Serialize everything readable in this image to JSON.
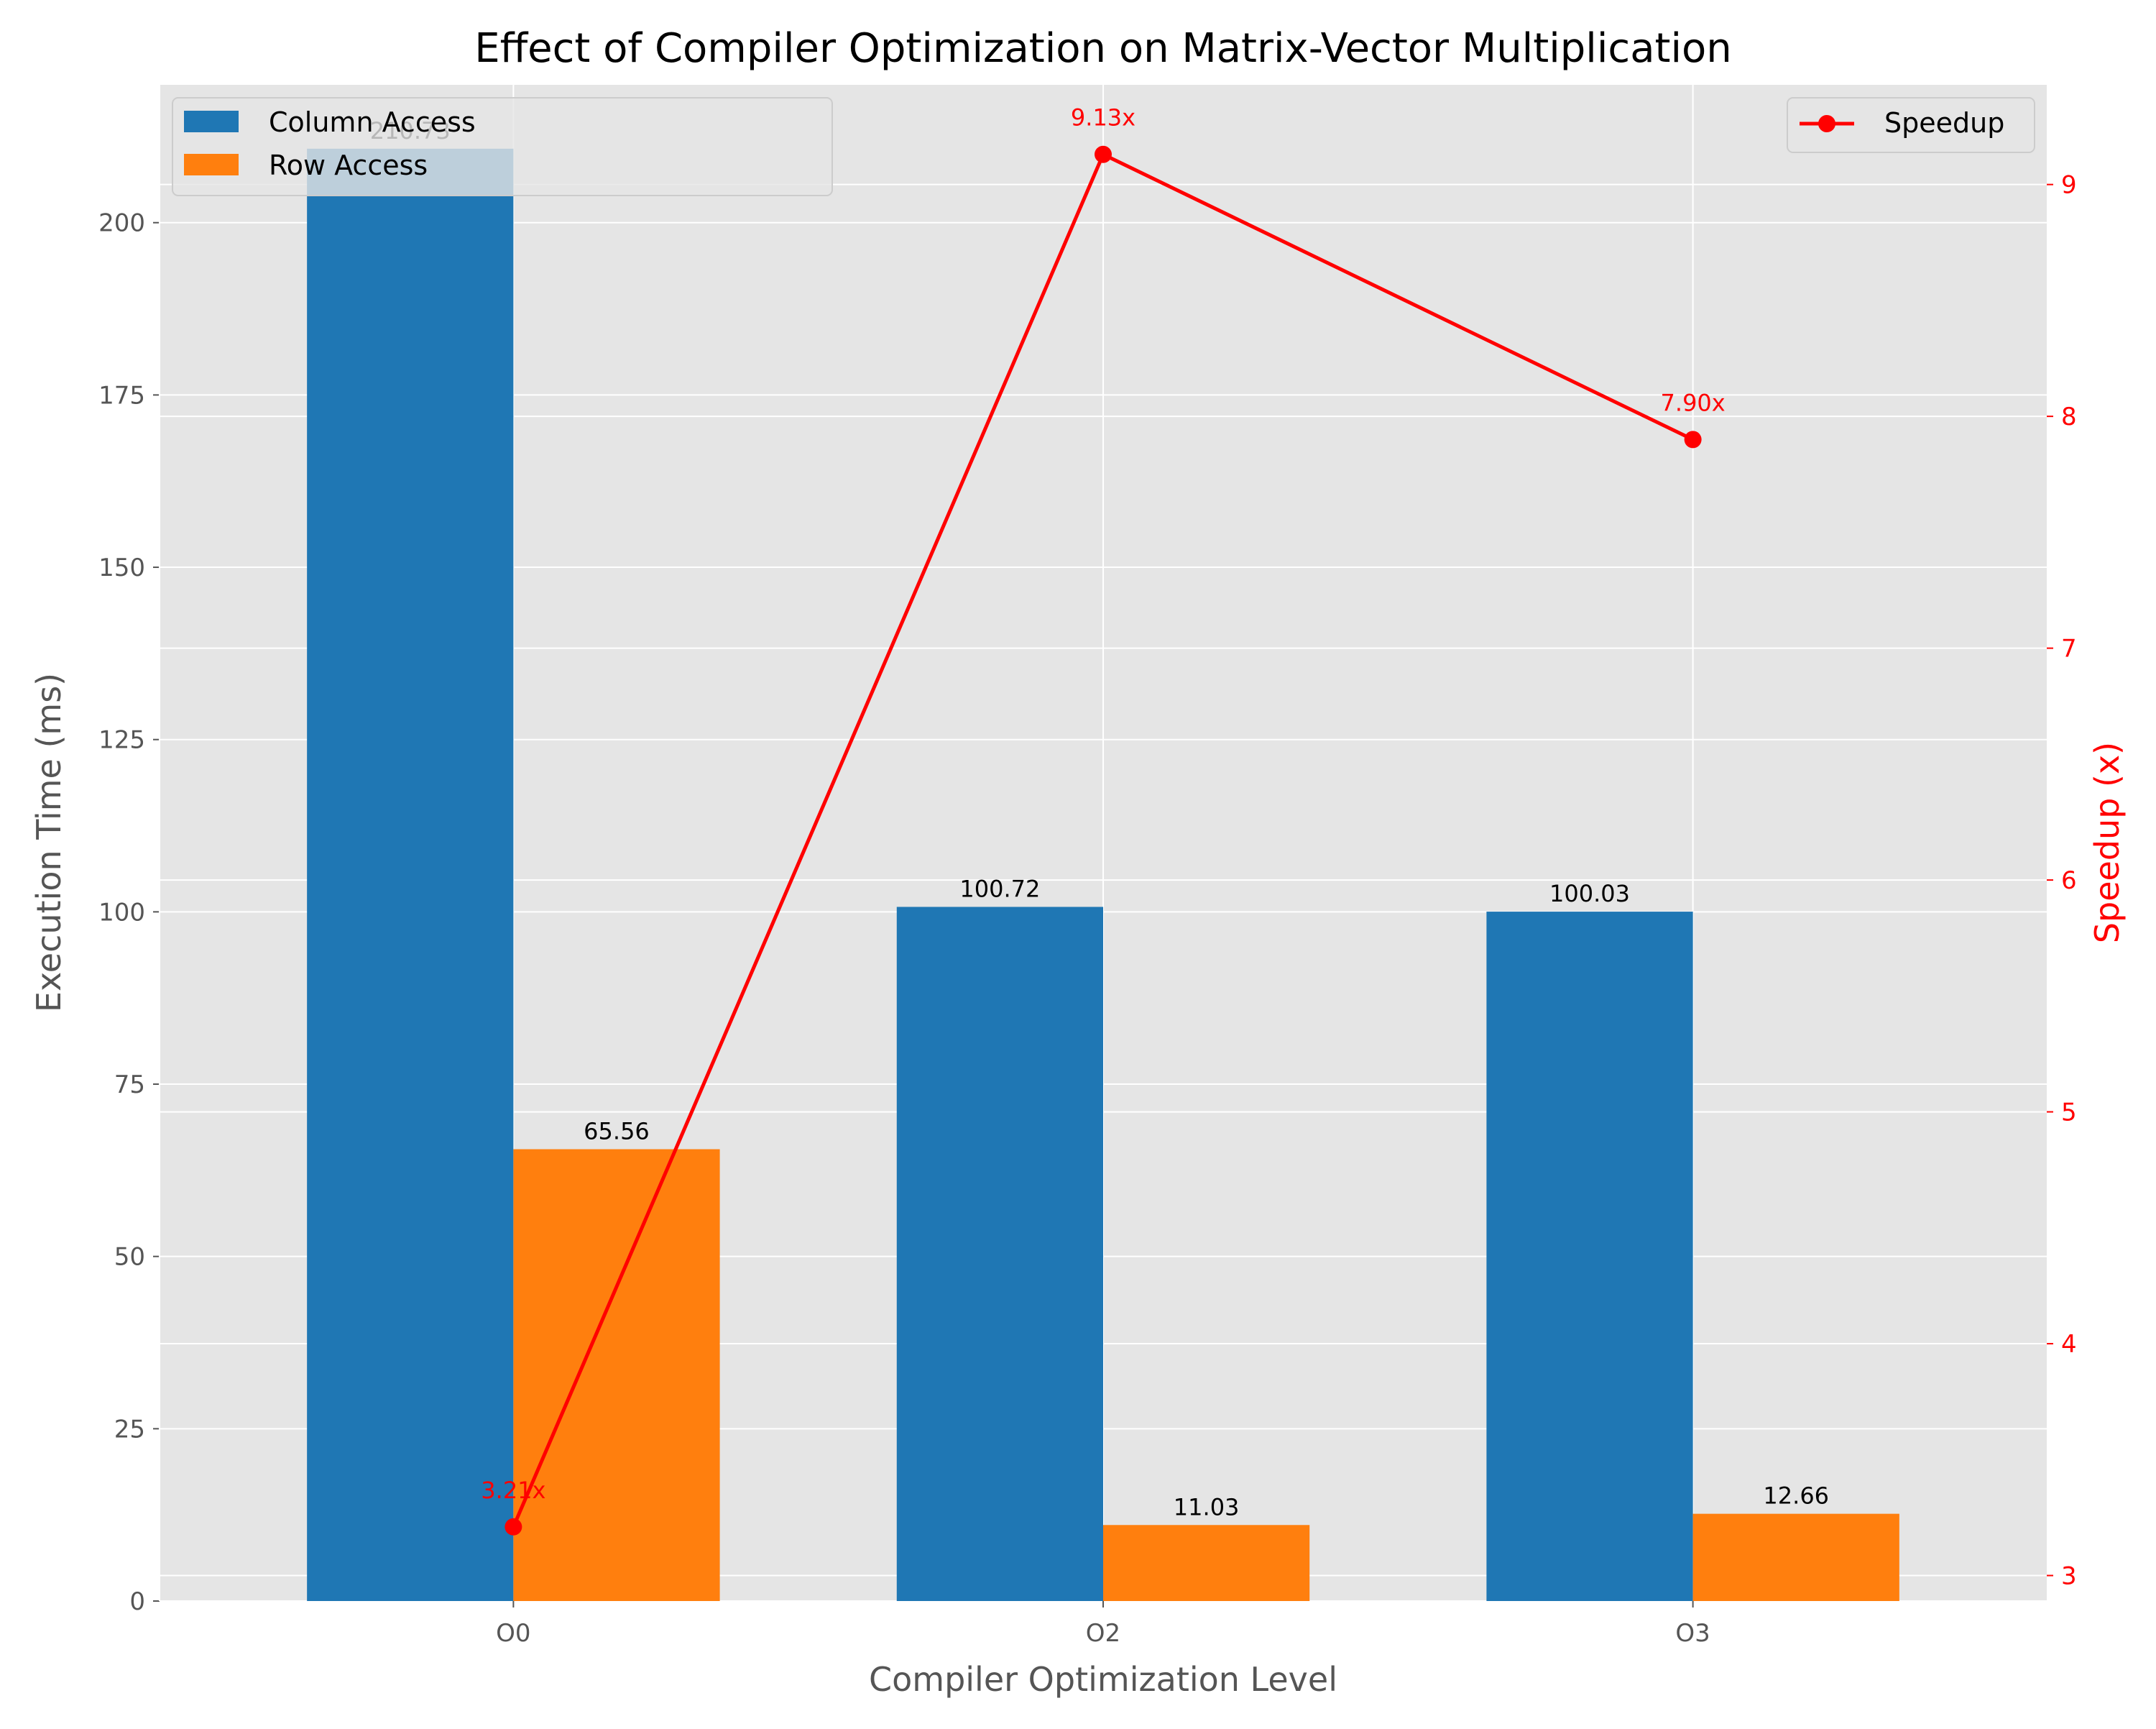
{
  "chart_data": {
    "type": "bar",
    "title": "Effect of Compiler Optimization on Matrix-Vector Multiplication",
    "xlabel": "Compiler Optimization Level",
    "ylabel": "Execution Time (ms)",
    "y2label": "Speedup (x)",
    "categories": [
      "O0",
      "O2",
      "O3"
    ],
    "ylim": [
      0,
      220
    ],
    "y_ticks": [
      0,
      25,
      50,
      75,
      100,
      125,
      150,
      175,
      200
    ],
    "y2lim": [
      2.89,
      9.43
    ],
    "y2_ticks": [
      3,
      4,
      5,
      6,
      7,
      8,
      9
    ],
    "grid": true,
    "series": [
      {
        "name": "Column Access",
        "kind": "bar",
        "color": "#1f77b4",
        "values": [
          210.73,
          100.72,
          100.03
        ],
        "labels": [
          "210.73",
          "100.72",
          "100.03"
        ]
      },
      {
        "name": "Row Access",
        "kind": "bar",
        "color": "#ff7f0e",
        "values": [
          65.56,
          11.03,
          12.66
        ],
        "labels": [
          "65.56",
          "11.03",
          "12.66"
        ]
      },
      {
        "name": "Speedup",
        "kind": "line",
        "axis": "right",
        "color": "#ff0000",
        "marker": "circle",
        "values": [
          3.21,
          9.13,
          7.9
        ],
        "labels": [
          "3.21x",
          "9.13x",
          "7.90x"
        ]
      }
    ],
    "legend_left_placement": "upper-left",
    "legend_right_placement": "upper-right",
    "colors": {
      "axes_background": "#e5e5e5",
      "grid": "#ffffff",
      "speedup_axis": "#ff0000"
    }
  }
}
